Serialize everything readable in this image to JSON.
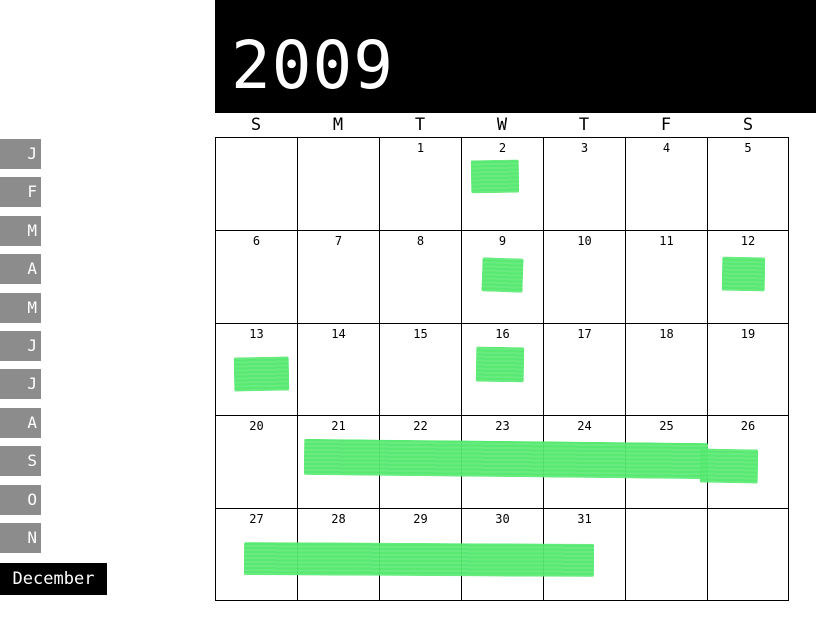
{
  "calendar": {
    "year": "2009",
    "weekdays": [
      "S",
      "M",
      "T",
      "W",
      "T",
      "F",
      "S"
    ],
    "weeks": [
      [
        "",
        "",
        "1",
        "2",
        "3",
        "4",
        "5"
      ],
      [
        "6",
        "7",
        "8",
        "9",
        "10",
        "11",
        "12"
      ],
      [
        "13",
        "14",
        "15",
        "16",
        "17",
        "18",
        "19"
      ],
      [
        "20",
        "21",
        "22",
        "23",
        "24",
        "25",
        "26"
      ],
      [
        "27",
        "28",
        "29",
        "30",
        "31",
        "",
        ""
      ]
    ]
  },
  "months": {
    "items": [
      "J",
      "F",
      "M",
      "A",
      "M",
      "J",
      "J",
      "A",
      "S",
      "O",
      "N"
    ],
    "selected": "December"
  },
  "colors": {
    "highlight": "#4fe86a",
    "tab": "#8c8c8c",
    "header": "#000000"
  }
}
